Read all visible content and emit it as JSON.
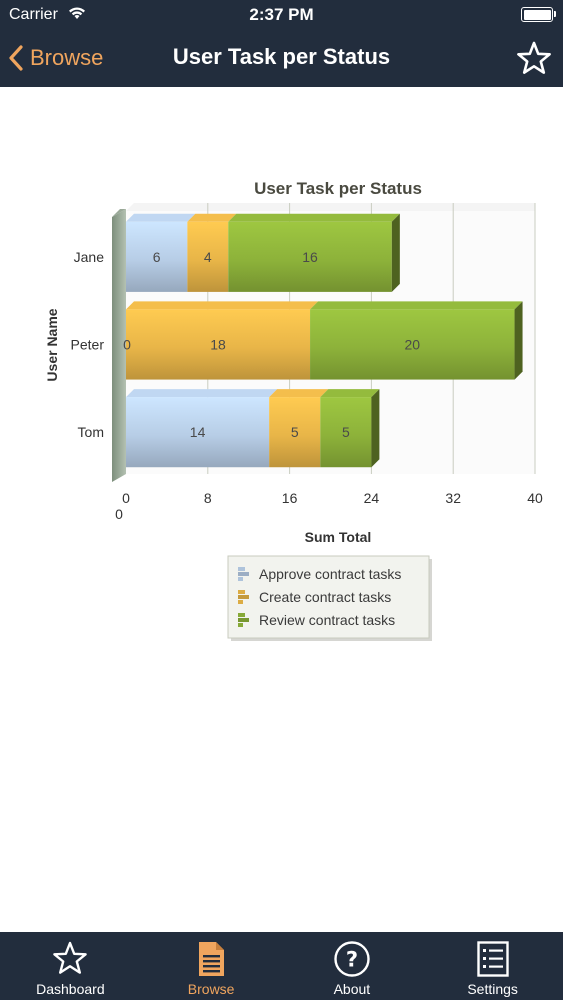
{
  "status_bar": {
    "carrier": "Carrier",
    "time": "2:37 PM"
  },
  "nav": {
    "back_label": "Browse",
    "title": "User Task per Status"
  },
  "chart_data": {
    "type": "bar",
    "orientation": "horizontal",
    "stacked": true,
    "title": "User Task per Status",
    "xlabel": "Sum Total",
    "ylabel": "User Name",
    "categories": [
      "Jane",
      "Peter",
      "Tom"
    ],
    "series": [
      {
        "name": "Approve contract tasks",
        "values": [
          6,
          0,
          14
        ],
        "labels": [
          "6",
          "0",
          "14"
        ],
        "color": "#b7cde6"
      },
      {
        "name": "Create contract tasks",
        "values": [
          4,
          18,
          5
        ],
        "labels": [
          "4",
          "18",
          "5"
        ],
        "color": "#e8b548"
      },
      {
        "name": "Review contract tasks",
        "values": [
          16,
          20,
          5
        ],
        "labels": [
          "16",
          "20",
          "5"
        ],
        "color": "#8db23a"
      }
    ],
    "xticks": [
      "0",
      "8",
      "16",
      "24",
      "32",
      "40"
    ],
    "origin_label": "0",
    "xlim": [
      0,
      40
    ],
    "grid": true,
    "legend": "bottom"
  },
  "tabs": [
    {
      "label": "Dashboard",
      "icon": "star-icon",
      "active": false
    },
    {
      "label": "Browse",
      "icon": "document-icon",
      "active": true
    },
    {
      "label": "About",
      "icon": "question-icon",
      "active": false
    },
    {
      "label": "Settings",
      "icon": "list-icon",
      "active": false
    }
  ],
  "colors": {
    "bar_bg": "#222d3d",
    "accent": "#f0a55e"
  }
}
